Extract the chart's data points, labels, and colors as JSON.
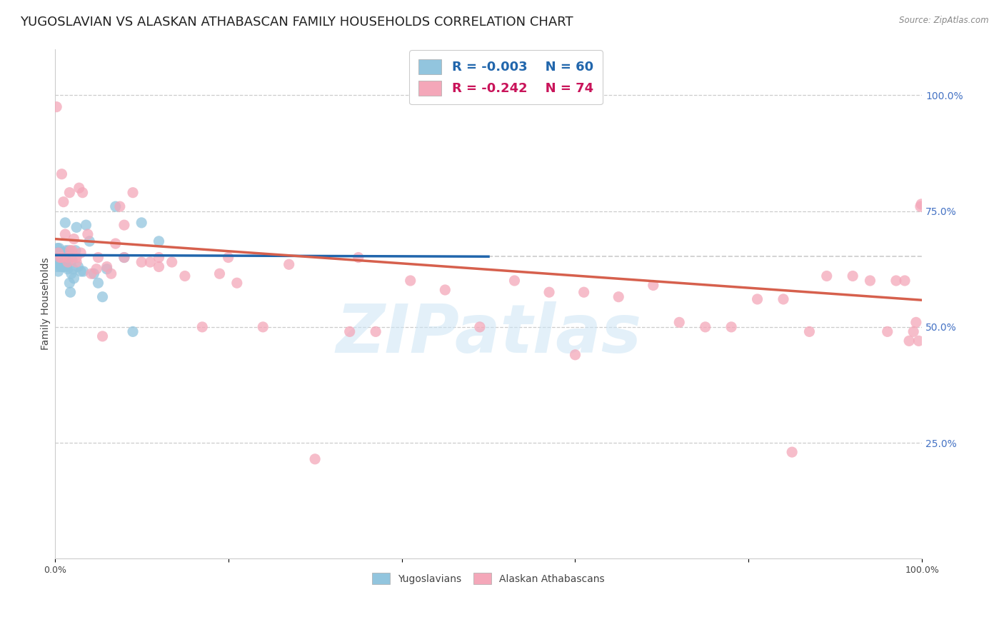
{
  "title": "YUGOSLAVIAN VS ALASKAN ATHABASCAN FAMILY HOUSEHOLDS CORRELATION CHART",
  "source": "Source: ZipAtlas.com",
  "ylabel": "Family Households",
  "right_yticks": [
    "100.0%",
    "75.0%",
    "50.0%",
    "25.0%"
  ],
  "right_ytick_vals": [
    1.0,
    0.75,
    0.5,
    0.25
  ],
  "legend_label1": "Yugoslavians",
  "legend_label2": "Alaskan Athabascans",
  "watermark": "ZIPatlas",
  "blue_color": "#92c5de",
  "pink_color": "#f4a7b9",
  "blue_line_color": "#2166ac",
  "pink_line_color": "#d6604d",
  "blue_scatter_x": [
    0.001,
    0.002,
    0.002,
    0.003,
    0.003,
    0.004,
    0.004,
    0.005,
    0.005,
    0.005,
    0.006,
    0.006,
    0.006,
    0.007,
    0.007,
    0.007,
    0.008,
    0.008,
    0.009,
    0.009,
    0.01,
    0.01,
    0.011,
    0.012,
    0.012,
    0.013,
    0.013,
    0.014,
    0.015,
    0.016,
    0.017,
    0.018,
    0.019,
    0.02,
    0.021,
    0.022,
    0.024,
    0.025,
    0.027,
    0.03,
    0.033,
    0.036,
    0.04,
    0.045,
    0.05,
    0.055,
    0.06,
    0.07,
    0.08,
    0.09,
    0.1,
    0.12,
    0.003,
    0.004,
    0.005,
    0.006,
    0.007,
    0.008,
    0.009,
    0.01
  ],
  "blue_scatter_y": [
    0.65,
    0.66,
    0.64,
    0.67,
    0.63,
    0.62,
    0.65,
    0.67,
    0.655,
    0.64,
    0.66,
    0.648,
    0.635,
    0.655,
    0.645,
    0.63,
    0.66,
    0.64,
    0.645,
    0.63,
    0.645,
    0.63,
    0.655,
    0.725,
    0.655,
    0.645,
    0.665,
    0.63,
    0.625,
    0.665,
    0.595,
    0.575,
    0.615,
    0.645,
    0.625,
    0.605,
    0.665,
    0.715,
    0.63,
    0.62,
    0.62,
    0.72,
    0.685,
    0.615,
    0.595,
    0.565,
    0.625,
    0.76,
    0.65,
    0.49,
    0.725,
    0.685,
    0.66,
    0.66,
    0.66,
    0.66,
    0.66,
    0.66,
    0.66,
    0.66
  ],
  "pink_scatter_x": [
    0.002,
    0.008,
    0.01,
    0.012,
    0.015,
    0.017,
    0.018,
    0.02,
    0.022,
    0.025,
    0.028,
    0.03,
    0.032,
    0.038,
    0.042,
    0.048,
    0.055,
    0.06,
    0.065,
    0.07,
    0.075,
    0.08,
    0.09,
    0.1,
    0.11,
    0.12,
    0.135,
    0.15,
    0.17,
    0.19,
    0.21,
    0.24,
    0.27,
    0.3,
    0.34,
    0.37,
    0.41,
    0.45,
    0.49,
    0.53,
    0.57,
    0.61,
    0.65,
    0.69,
    0.72,
    0.75,
    0.78,
    0.81,
    0.84,
    0.87,
    0.89,
    0.92,
    0.94,
    0.96,
    0.97,
    0.98,
    0.985,
    0.99,
    0.993,
    0.996,
    0.998,
    0.999,
    0.004,
    0.006,
    0.008,
    0.015,
    0.025,
    0.05,
    0.08,
    0.12,
    0.2,
    0.35,
    0.6,
    0.85
  ],
  "pink_scatter_y": [
    0.975,
    0.83,
    0.77,
    0.7,
    0.64,
    0.79,
    0.665,
    0.665,
    0.69,
    0.64,
    0.8,
    0.66,
    0.79,
    0.7,
    0.615,
    0.625,
    0.48,
    0.63,
    0.615,
    0.68,
    0.76,
    0.72,
    0.79,
    0.64,
    0.64,
    0.63,
    0.64,
    0.61,
    0.5,
    0.615,
    0.595,
    0.5,
    0.635,
    0.215,
    0.49,
    0.49,
    0.6,
    0.58,
    0.5,
    0.6,
    0.575,
    0.575,
    0.565,
    0.59,
    0.51,
    0.5,
    0.5,
    0.56,
    0.56,
    0.49,
    0.61,
    0.61,
    0.6,
    0.49,
    0.6,
    0.6,
    0.47,
    0.49,
    0.51,
    0.47,
    0.76,
    0.765,
    0.66,
    0.65,
    0.65,
    0.65,
    0.65,
    0.65,
    0.65,
    0.65,
    0.65,
    0.65,
    0.44,
    0.23
  ],
  "blue_trend_x": [
    0.0,
    0.5
  ],
  "blue_trend_y": [
    0.655,
    0.652
  ],
  "pink_trend_x": [
    0.0,
    1.0
  ],
  "pink_trend_y": [
    0.69,
    0.558
  ],
  "hline_y": 0.653,
  "xlim": [
    0.0,
    1.0
  ],
  "ylim": [
    0.0,
    1.1
  ],
  "background_color": "#ffffff",
  "grid_color": "#cccccc",
  "title_fontsize": 13,
  "axis_label_fontsize": 10,
  "tick_fontsize": 9,
  "legend_fontsize": 13
}
